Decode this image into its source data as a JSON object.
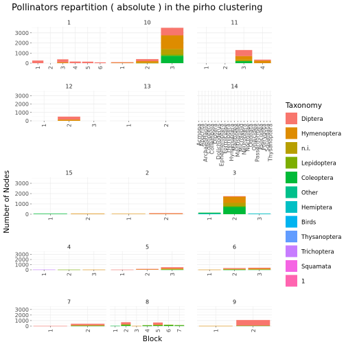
{
  "chart_data": {
    "type": "bar",
    "stacked": true,
    "faceted": true,
    "title": "Pollinators repartition ( absolute ) in the pirho clustering",
    "xlabel": "Block",
    "ylabel": "Number of Nodes",
    "y_ticks": [
      0,
      1000,
      2000,
      3000
    ],
    "ylim": [
      0,
      3600
    ],
    "grid": true,
    "legend_title": "Taxonomy",
    "legend_position": "right",
    "taxa": [
      "Diptera",
      "Hymenoptera",
      "n.i.",
      "Lepidoptera",
      "Coleoptera",
      "Other",
      "Hemiptera",
      "Birds",
      "Thysanoptera",
      "Trichoptera",
      "Squamata",
      "1"
    ],
    "colors": {
      "Diptera": "#F8766D",
      "Hymenoptera": "#DE8C00",
      "n.i.": "#B79F00",
      "Lepidoptera": "#7CAE00",
      "Coleoptera": "#00BA38",
      "Other": "#00C08B",
      "Hemiptera": "#00BFC4",
      "Birds": "#00B4F0",
      "Thysanoptera": "#619CFF",
      "Trichoptera": "#C77CFF",
      "Squamata": "#F564E3",
      "1": "#FF64B0"
    },
    "panels": [
      {
        "name": "1",
        "categories": [
          "1",
          "2",
          "3",
          "4",
          "5",
          "6"
        ],
        "stacks": [
          {
            "Diptera": 260
          },
          {},
          {
            "Diptera": 300,
            "Hymenoptera": 80
          },
          {
            "Diptera": 160
          },
          {
            "Diptera": 150
          },
          {
            "Diptera": 80
          }
        ]
      },
      {
        "name": "10",
        "categories": [
          "1",
          "2",
          "3"
        ],
        "stacks": [
          {
            "Diptera": 60,
            "Hymenoptera": 40
          },
          {
            "Diptera": 200,
            "Hymenoptera": 180,
            "Lepidoptera": 20
          },
          {
            "Diptera": 750,
            "Hymenoptera": 1350,
            "n.i.": 550,
            "Lepidoptera": 120,
            "Coleoptera": 730
          }
        ]
      },
      {
        "name": "11",
        "categories": [
          "1",
          "2",
          "3",
          "4"
        ],
        "stacks": [
          {},
          {},
          {
            "Diptera": 600,
            "Hymenoptera": 350,
            "n.i.": 150,
            "Coleoptera": 200
          },
          {
            "Diptera": 100,
            "Hymenoptera": 250
          }
        ]
      },
      {
        "name": "12",
        "categories": [
          "1",
          "2",
          "3"
        ],
        "stacks": [
          {},
          {
            "Diptera": 350,
            "Hymenoptera": 150
          },
          {}
        ]
      },
      {
        "name": "13",
        "categories": [
          "1",
          "2"
        ],
        "stacks": [
          {},
          {}
        ]
      },
      {
        "name": "14",
        "categories": [
          "Acmona",
          "Apocrita",
          "ArchaeoHaplo",
          "Coleoptera",
          "Collembola",
          "Diptera",
          "Dolichoderus",
          "Ephemeroptera",
          "Formicidae",
          "Hemiptera",
          "Hymenoptera",
          "Mantodea",
          "Mantispidae",
          "Microlepid",
          "Neuroptera",
          "Noctuidae",
          "Odonata",
          "Oniscidea",
          "Passeriformes",
          "Psocodea",
          "Pterygota",
          "Squamata",
          "Thysanoptera"
        ],
        "stacks": []
      },
      {
        "name": "15",
        "categories": [
          "1",
          "2"
        ],
        "stacks": [
          {
            "Coleoptera": 50
          },
          {
            "Hymenoptera": 50
          }
        ]
      },
      {
        "name": "2",
        "categories": [
          "1",
          "2"
        ],
        "stacks": [
          {
            "Hymenoptera": 40
          },
          {
            "Diptera": 60,
            "Hymenoptera": 40
          }
        ]
      },
      {
        "name": "3",
        "categories": [
          "1",
          "2",
          "3"
        ],
        "stacks": [
          {
            "Coleoptera": 80,
            "Hemiptera": 70
          },
          {
            "Diptera": 50,
            "Hymenoptera": 600,
            "n.i.": 300,
            "Lepidoptera": 100,
            "Coleoptera": 700
          },
          {
            "Hemiptera": 60
          }
        ]
      },
      {
        "name": "4",
        "categories": [
          "1",
          "2",
          "3"
        ],
        "stacks": [
          {
            "Trichoptera": 50
          },
          {
            "Lepidoptera": 40
          },
          {
            "Hymenoptera": 40
          }
        ]
      },
      {
        "name": "5",
        "categories": [
          "1",
          "2",
          "3"
        ],
        "stacks": [
          {
            "Diptera": 40
          },
          {
            "Diptera": 100,
            "Hymenoptera": 80
          },
          {
            "Diptera": 250,
            "Hymenoptera": 150,
            "Lepidoptera": 50,
            "Coleoptera": 50
          }
        ]
      },
      {
        "name": "6",
        "categories": [
          "1",
          "2",
          "3"
        ],
        "stacks": [
          {
            "Hymenoptera": 40
          },
          {
            "Diptera": 150,
            "Hymenoptera": 100,
            "Lepidoptera": 50,
            "Coleoptera": 30
          },
          {
            "Diptera": 150,
            "Hymenoptera": 150,
            "n.i.": 50,
            "Coleoptera": 50
          }
        ]
      },
      {
        "name": "7",
        "categories": [
          "1",
          "2"
        ],
        "stacks": [
          {
            "Diptera": 40
          },
          {
            "Diptera": 250,
            "Hymenoptera": 120,
            "Coleoptera": 50
          }
        ]
      },
      {
        "name": "8",
        "categories": [
          "1",
          "2",
          "3",
          "4",
          "5",
          "6",
          "7"
        ],
        "stacks": [
          {
            "Coleoptera": 50
          },
          {
            "Diptera": 400,
            "Lepidoptera": 200,
            "Coleoptera": 100
          },
          {
            "Hymenoptera": 40
          },
          {
            "Lepidoptera": 100,
            "Coleoptera": 60
          },
          {
            "Diptera": 400,
            "n.i.": 150,
            "Coleoptera": 100
          },
          {
            "Lepidoptera": 150,
            "Coleoptera": 100
          },
          {
            "Lepidoptera": 100,
            "Coleoptera": 80
          }
        ]
      },
      {
        "name": "9",
        "categories": [
          "1",
          "2"
        ],
        "stacks": [
          {
            "Hymenoptera": 40
          },
          {
            "Diptera": 1000,
            "Hymenoptera": 40,
            "Coleoptera": 60
          }
        ]
      }
    ]
  }
}
